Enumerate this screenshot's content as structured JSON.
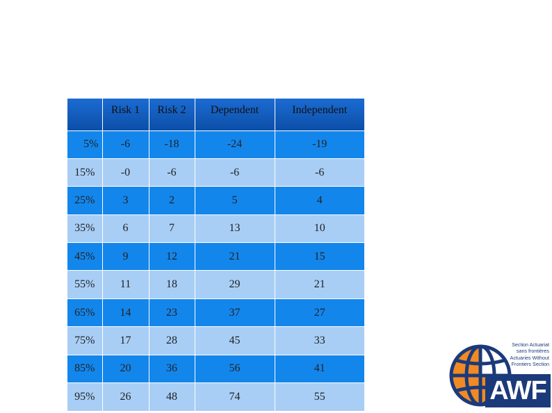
{
  "table": {
    "headers": [
      "",
      "Risk 1",
      "Risk 2",
      "Dependent",
      "Independent"
    ],
    "rows": [
      [
        "5%",
        "-6",
        "-18",
        "-24",
        "-19"
      ],
      [
        "15%",
        "-0",
        "-6",
        "-6",
        "-6"
      ],
      [
        "25%",
        "3",
        "2",
        "5",
        "4"
      ],
      [
        "35%",
        "6",
        "7",
        "13",
        "10"
      ],
      [
        "45%",
        "9",
        "12",
        "21",
        "15"
      ],
      [
        "55%",
        "11",
        "18",
        "29",
        "21"
      ],
      [
        "65%",
        "14",
        "23",
        "37",
        "27"
      ],
      [
        "75%",
        "17",
        "28",
        "45",
        "33"
      ],
      [
        "85%",
        "20",
        "36",
        "56",
        "41"
      ],
      [
        "95%",
        "26",
        "48",
        "74",
        "55"
      ]
    ]
  },
  "logo": {
    "lines": [
      "Section Actuariat",
      "sans frontières",
      "Actuaries Without",
      "Frontiers Section"
    ],
    "brand": "AWF"
  },
  "colors": {
    "header": "#0c4fa8",
    "row_dark": "#1386ec",
    "row_light": "#a8cef6",
    "logo_blue": "#1b3a7a",
    "logo_orange": "#f08a24"
  }
}
